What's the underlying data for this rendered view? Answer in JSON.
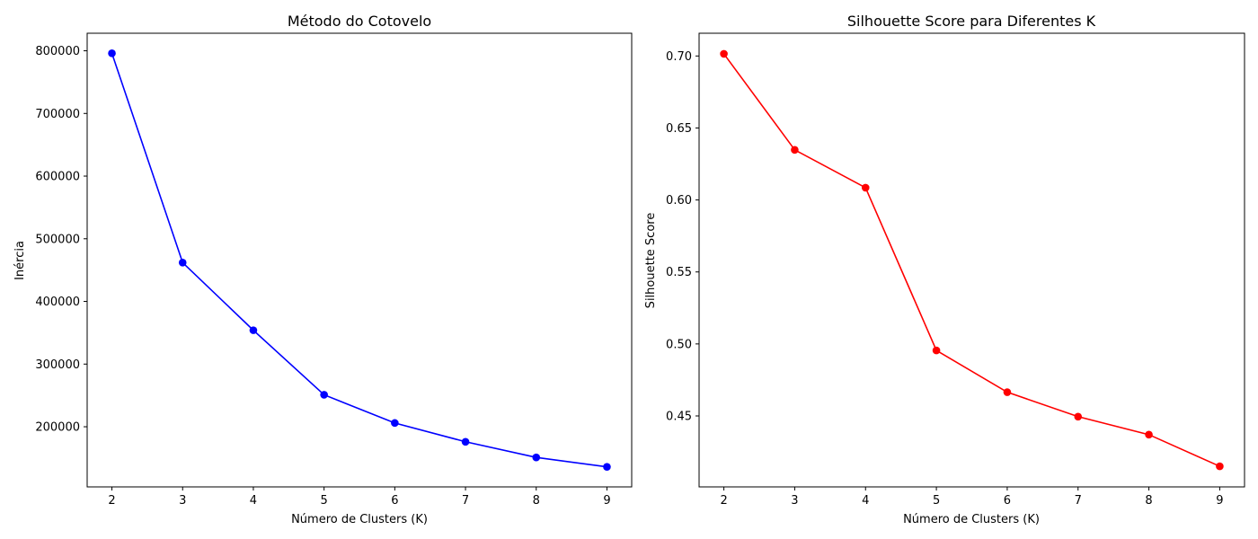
{
  "chart_data": [
    {
      "type": "line",
      "title": "Método do Cotovelo",
      "xlabel": "Número de Clusters (K)",
      "ylabel": "Inércia",
      "color": "#0000ff",
      "marker": "circle",
      "x": [
        2,
        3,
        4,
        5,
        6,
        7,
        8,
        9
      ],
      "values": [
        796000,
        462000,
        354000,
        251000,
        206000,
        176000,
        151000,
        136000
      ],
      "xlim": [
        1.65,
        9.35
      ],
      "ylim": [
        104000,
        828000
      ],
      "xticks": [
        2,
        3,
        4,
        5,
        6,
        7,
        8,
        9
      ],
      "yticks": [
        200000,
        300000,
        400000,
        500000,
        600000,
        700000,
        800000
      ],
      "ytick_labels": [
        "200000",
        "300000",
        "400000",
        "500000",
        "600000",
        "700000",
        "800000"
      ],
      "grid": false,
      "legend": "none"
    },
    {
      "type": "line",
      "title": "Silhouette Score para Diferentes K",
      "xlabel": "Número de Clusters (K)",
      "ylabel": "Silhouette Score",
      "color": "#ff0000",
      "marker": "circle",
      "x": [
        2,
        3,
        4,
        5,
        6,
        7,
        8,
        9
      ],
      "values": [
        0.7015,
        0.6348,
        0.6085,
        0.4955,
        0.4665,
        0.4495,
        0.437,
        0.415
      ],
      "xlim": [
        1.65,
        9.35
      ],
      "ylim": [
        0.4007,
        0.7158
      ],
      "xticks": [
        2,
        3,
        4,
        5,
        6,
        7,
        8,
        9
      ],
      "yticks": [
        0.45,
        0.5,
        0.55,
        0.6,
        0.65,
        0.7
      ],
      "ytick_labels": [
        "0.45",
        "0.50",
        "0.55",
        "0.60",
        "0.65",
        "0.70"
      ],
      "grid": false,
      "legend": "none"
    }
  ]
}
